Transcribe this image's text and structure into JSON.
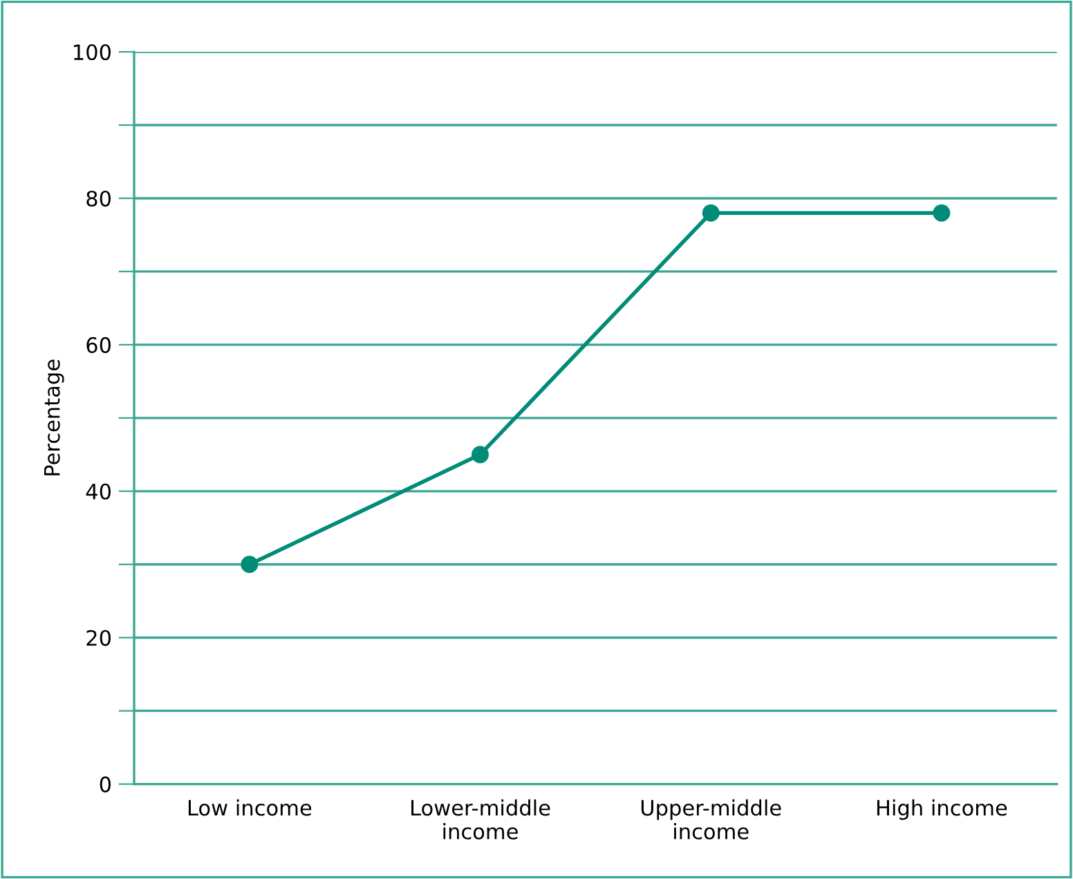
{
  "chart_data": {
    "type": "line",
    "ylabel": "Percentage",
    "categories": [
      "Low income",
      "Lower-middle\nincome",
      "Upper-middle\nincome",
      "High income"
    ],
    "series": [
      {
        "color": "#008c76",
        "values": [
          30,
          45,
          78,
          78
        ]
      }
    ],
    "ylim": [
      0,
      100
    ],
    "yticks": [
      0,
      {
        "value": 10,
        "label": null
      },
      20,
      {
        "value": 30,
        "label": null
      },
      40,
      {
        "value": 50,
        "label": null
      },
      60,
      {
        "value": 70,
        "label": null
      },
      80,
      {
        "value": 90,
        "label": null
      },
      100
    ],
    "grid": "y",
    "marker": "circle",
    "line_style": "solid",
    "legend": false
  }
}
